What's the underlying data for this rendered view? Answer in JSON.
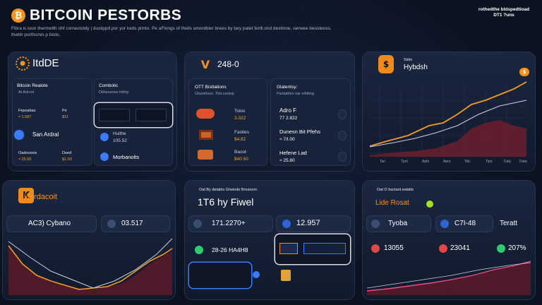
{
  "header": {
    "logo_glyph": "₿",
    "title": "BITCOIN PESTORBS",
    "subtitle": "Fibra is loon thermetth ohf cornectoldy | duxiippd por yor loots pimto. Pe aFlongs of thells amontbier brees by tary patet fertll.ond dextinne, oerwee beosteoss, thebtr porthsmis p biots.",
    "corner_note": "rothedthe bldspedtioad DT1 ?uns"
  },
  "p1": {
    "brand": "ItdDE",
    "left_title": "Bitcoin Realote",
    "left_sub": "At Adcret",
    "r1_label": "Fepoabas",
    "r1_val": "Pe",
    "r1_amt": "≈ 1.587",
    "r1_amt2": "$11",
    "user": "San Ardral",
    "r3_label": "Oadocions",
    "r3_val": "Deed",
    "r3_amt": "≈ 25.00",
    "r3_amt2": "$1.00",
    "right_title": "Combolic",
    "right_sub": "Ditheseoes trtthiy",
    "item1": "Hulthe",
    "item1_val": "105.52",
    "item2": "Morbanolts"
  },
  "p2": {
    "brand": "248-0",
    "left_title": "OTT Bisttations",
    "left_sub": "Gloxstinuo. Tbit.ceotsp",
    "r1": "Tstoo",
    "r1_amt": "3.322",
    "r2": "Fastles",
    "r2_amt": "$4.82",
    "r3": "Baoot",
    "r3_amt": "$40.50",
    "right_title": "Glatentsy:",
    "right_sub": "Pastabhio oar eihiting",
    "k1": "Adro F",
    "k1_val": "77 2.822",
    "k2": "Dunesn Bit Pfehs",
    "k2_val": "≈ 7/I.00",
    "k3": "Hefene Lad",
    "k3_val": "≈ 25.80"
  },
  "p3": {
    "brand_top": "Sielo",
    "brand": "Hybdsh",
    "badge": "$",
    "x_labels": [
      "Tan",
      "Tpol",
      "Apfo",
      "Apro",
      "Teb",
      "Tipo",
      "Daly",
      "Data"
    ]
  },
  "p4": {
    "brand": "Hbrdacoit",
    "left_pill": "AC3) Cybano",
    "right_pill": "03.517"
  },
  "p5": {
    "top_note": "Oat By detabis Gheinde Brosoom",
    "title": "1T6 hy Fiwel",
    "pill1": "171.2270+",
    "pill2": "12.957",
    "pill3": "28-26 HA4H8"
  },
  "p6": {
    "top_note": "Oat O bactant estatts",
    "label": "Lide Rosat",
    "c1": "Tyoba",
    "c2": "C7I-48",
    "c3": "Teratt",
    "c4": "13055",
    "c5": "23041",
    "c6": "207%"
  },
  "colors": {
    "accent": "#f7931a",
    "positive": "#2ecc71",
    "negative": "#e04848",
    "blue": "#3b7bff"
  }
}
